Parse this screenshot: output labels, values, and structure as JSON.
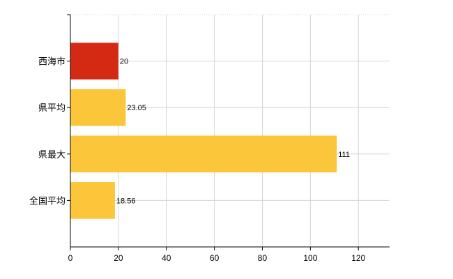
{
  "chart_data": {
    "type": "bar",
    "orientation": "horizontal",
    "categories": [
      "西海市",
      "県平均",
      "県最大",
      "全国平均"
    ],
    "values": [
      20,
      23.05,
      111,
      18.56
    ],
    "value_labels": [
      "20",
      "23.05",
      "111",
      "18.56"
    ],
    "bar_colors": [
      "#d42a14",
      "#fcc63a",
      "#fcc63a",
      "#fcc63a"
    ],
    "title": "",
    "xlabel": "",
    "ylabel": "",
    "xlim": [
      0,
      133
    ],
    "xticks": [
      0,
      20,
      40,
      60,
      80,
      100,
      120
    ],
    "grid": true,
    "legend": "none"
  }
}
